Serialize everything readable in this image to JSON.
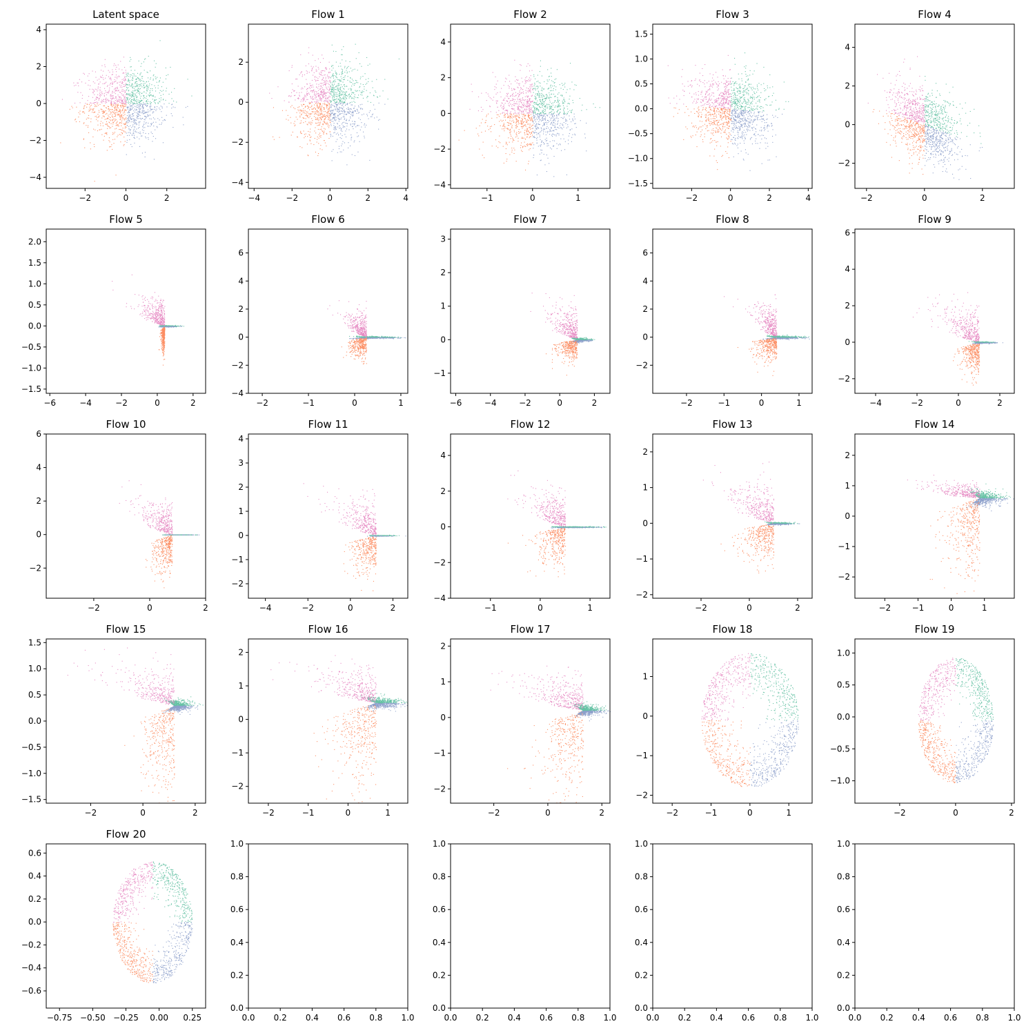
{
  "colors": {
    "series_colors": [
      "#66c2a5",
      "#fc8d62",
      "#8da0cb",
      "#e78ac3"
    ],
    "axes": "#000000",
    "background": "#ffffff"
  },
  "chart_data": [
    {
      "type": "scatter",
      "title": "Latent space",
      "xlim": [
        -3.9,
        3.9
      ],
      "ylim": [
        -4.6,
        4.3
      ],
      "xticks": [
        -2,
        0,
        2
      ],
      "yticks": [
        -4,
        -2,
        0,
        2,
        4
      ],
      "shape": {
        "kind": "gauss",
        "sx": 1.0,
        "sy": 1.0
      },
      "grid": false
    },
    {
      "type": "scatter",
      "title": "Flow 1",
      "xlim": [
        -4.3,
        4.1
      ],
      "ylim": [
        -4.3,
        3.9
      ],
      "xticks": [
        -4,
        -2,
        0,
        2,
        4
      ],
      "yticks": [
        -4,
        -2,
        0,
        2
      ],
      "shape": {
        "kind": "gauss",
        "sx": 1.0,
        "sy": 1.0
      },
      "grid": false
    },
    {
      "type": "scatter",
      "title": "Flow 2",
      "xlim": [
        -1.8,
        1.7
      ],
      "ylim": [
        -4.2,
        5.0
      ],
      "xticks": [
        -1,
        0,
        1
      ],
      "yticks": [
        -4,
        -2,
        0,
        2,
        4
      ],
      "shape": {
        "kind": "gauss",
        "sx": 0.45,
        "sy": 1.0
      },
      "grid": false
    },
    {
      "type": "scatter",
      "title": "Flow 3",
      "xlim": [
        -4.0,
        4.2
      ],
      "ylim": [
        -1.6,
        1.7
      ],
      "xticks": [
        -2,
        0,
        2,
        4
      ],
      "yticks": [
        -1.5,
        -1.0,
        -0.5,
        0.0,
        0.5,
        1.0,
        1.5
      ],
      "shape": {
        "kind": "shear",
        "sx": 1.0,
        "sy": 0.35,
        "k": -0.12
      },
      "grid": false
    },
    {
      "type": "scatter",
      "title": "Flow 4",
      "xlim": [
        -2.4,
        3.1
      ],
      "ylim": [
        -3.3,
        5.2
      ],
      "xticks": [
        -2,
        0,
        2
      ],
      "yticks": [
        -2,
        0,
        2,
        4
      ],
      "shape": {
        "kind": "shear",
        "sx": 0.6,
        "sy": 0.9,
        "k": -1.1
      },
      "grid": false
    },
    {
      "type": "scatter",
      "title": "Flow 5",
      "xlim": [
        -6.2,
        2.7
      ],
      "ylim": [
        -1.6,
        2.3
      ],
      "xticks": [
        -6,
        -4,
        -2,
        0,
        2
      ],
      "yticks": [
        -1.5,
        -1.0,
        -0.5,
        0.0,
        0.5,
        1.0,
        1.5,
        2.0
      ],
      "shape": {
        "kind": "wedge",
        "cx": 0.4,
        "cy": 0.0,
        "ax": -1.5,
        "ay": 0.55,
        "bx": 0.0,
        "by": -0.45
      },
      "grid": false
    },
    {
      "type": "scatter",
      "title": "Flow 6",
      "xlim": [
        -2.3,
        1.15
      ],
      "ylim": [
        -4.0,
        7.7
      ],
      "xticks": [
        -2,
        -1,
        0,
        1
      ],
      "yticks": [
        -4,
        -2,
        0,
        2,
        4,
        6
      ],
      "shape": {
        "kind": "wedge",
        "cx": 0.25,
        "cy": 0.0,
        "ax": -0.45,
        "ay": 1.5,
        "bx": -0.2,
        "by": -1.0
      },
      "grid": false
    },
    {
      "type": "scatter",
      "title": "Flow 7",
      "xlim": [
        -6.3,
        2.9
      ],
      "ylim": [
        -1.6,
        3.3
      ],
      "xticks": [
        -6,
        -4,
        -2,
        0,
        2
      ],
      "yticks": [
        -1,
        0,
        1,
        2,
        3
      ],
      "shape": {
        "kind": "wedge",
        "cx": 1.0,
        "cy": 0.0,
        "ax": -1.6,
        "ay": 0.8,
        "bx": -1.3,
        "by": -0.45
      },
      "grid": false
    },
    {
      "type": "scatter",
      "title": "Flow 8",
      "xlim": [
        -2.9,
        1.35
      ],
      "ylim": [
        -4.0,
        7.7
      ],
      "xticks": [
        -2,
        -1,
        0,
        1
      ],
      "yticks": [
        -2,
        0,
        2,
        4,
        6
      ],
      "shape": {
        "kind": "wedge",
        "cx": 0.4,
        "cy": 0.0,
        "ax": -0.6,
        "ay": 2.0,
        "bx": -0.5,
        "by": -1.3
      },
      "grid": false
    },
    {
      "type": "scatter",
      "title": "Flow 9",
      "xlim": [
        -5.0,
        2.7
      ],
      "ylim": [
        -2.8,
        6.2
      ],
      "xticks": [
        -4,
        -2,
        0,
        2
      ],
      "yticks": [
        -2,
        0,
        2,
        4,
        6
      ],
      "shape": {
        "kind": "wedge",
        "cx": 1.0,
        "cy": 0.0,
        "ax": -2.0,
        "ay": 1.6,
        "bx": -0.9,
        "by": -1.3
      },
      "grid": false
    },
    {
      "type": "scatter",
      "title": "Flow 10",
      "xlim": [
        -3.7,
        2.0
      ],
      "ylim": [
        -3.8,
        6.0
      ],
      "xticks": [
        -2,
        0,
        2
      ],
      "yticks": [
        -2,
        0,
        2,
        4,
        6
      ],
      "shape": {
        "kind": "wedge",
        "cx": 0.8,
        "cy": 0.0,
        "ax": -1.3,
        "ay": 1.7,
        "bx": -0.7,
        "by": -1.7
      },
      "grid": false
    },
    {
      "type": "scatter",
      "title": "Flow 11",
      "xlim": [
        -4.8,
        2.7
      ],
      "ylim": [
        -2.6,
        4.2
      ],
      "xticks": [
        -4,
        -2,
        0,
        2
      ],
      "yticks": [
        -2,
        -1,
        0,
        1,
        2,
        3,
        4
      ],
      "shape": {
        "kind": "wedge",
        "cx": 1.2,
        "cy": 0.0,
        "ax": -2.0,
        "ay": 1.3,
        "bx": -1.3,
        "by": -1.2
      },
      "grid": false
    },
    {
      "type": "scatter",
      "title": "Flow 12",
      "xlim": [
        -1.8,
        1.4
      ],
      "ylim": [
        -4.0,
        5.2
      ],
      "xticks": [
        -1,
        0,
        1
      ],
      "yticks": [
        -4,
        -2,
        0,
        2,
        4
      ],
      "shape": {
        "kind": "wedge",
        "cx": 0.5,
        "cy": 0.0,
        "ax": -0.8,
        "ay": 1.8,
        "bx": -0.5,
        "by": -1.6
      },
      "grid": false
    },
    {
      "type": "scatter",
      "title": "Flow 13",
      "xlim": [
        -4.0,
        2.6
      ],
      "ylim": [
        -2.1,
        2.5
      ],
      "xticks": [
        -2,
        0,
        2
      ],
      "yticks": [
        -2,
        -1,
        0,
        1,
        2
      ],
      "shape": {
        "kind": "wedge",
        "cx": 1.0,
        "cy": 0.0,
        "ax": -2.0,
        "ay": 1.0,
        "bx": -1.6,
        "by": -0.8
      },
      "grid": false
    },
    {
      "type": "scatter",
      "title": "Flow 14",
      "xlim": [
        -2.9,
        1.9
      ],
      "ylim": [
        -2.7,
        2.7
      ],
      "xticks": [
        -2,
        -1,
        0,
        1
      ],
      "yticks": [
        -2,
        -1,
        0,
        1,
        2
      ],
      "shape": {
        "kind": "wedge",
        "cx": 0.85,
        "cy": 0.6,
        "ax": -1.6,
        "ay": 0.4,
        "bx": -1.1,
        "by": -2.0
      },
      "grid": false
    },
    {
      "type": "scatter",
      "title": "Flow 15",
      "xlim": [
        -3.7,
        2.4
      ],
      "ylim": [
        -1.57,
        1.57
      ],
      "xticks": [
        -2,
        0,
        2
      ],
      "yticks": [
        -1.5,
        -1.0,
        -0.5,
        0.0,
        0.5,
        1.0,
        1.5
      ],
      "shape": {
        "kind": "wedge",
        "cx": 1.2,
        "cy": 0.3,
        "ax": -2.2,
        "ay": 0.6,
        "bx": -1.4,
        "by": -1.3
      },
      "grid": false
    },
    {
      "type": "scatter",
      "title": "Flow 16",
      "xlim": [
        -2.5,
        1.5
      ],
      "ylim": [
        -2.5,
        2.4
      ],
      "xticks": [
        -2,
        -1,
        0,
        1
      ],
      "yticks": [
        -2,
        -1,
        0,
        1,
        2
      ],
      "shape": {
        "kind": "wedge",
        "cx": 0.7,
        "cy": 0.5,
        "ax": -1.6,
        "ay": 0.9,
        "bx": -1.2,
        "by": -2.0
      },
      "grid": false
    },
    {
      "type": "scatter",
      "title": "Flow 17",
      "xlim": [
        -3.6,
        2.3
      ],
      "ylim": [
        -2.4,
        2.2
      ],
      "xticks": [
        -2,
        0,
        2
      ],
      "yticks": [
        -2,
        -1,
        0,
        1,
        2
      ],
      "shape": {
        "kind": "wedge",
        "cx": 1.3,
        "cy": 0.2,
        "ax": -2.3,
        "ay": 0.8,
        "bx": -1.8,
        "by": -1.8
      },
      "grid": false
    },
    {
      "type": "scatter",
      "title": "Flow 18",
      "xlim": [
        -2.5,
        1.6
      ],
      "ylim": [
        -2.2,
        1.95
      ],
      "xticks": [
        -2,
        -1,
        0,
        1
      ],
      "yticks": [
        -2,
        -1,
        0,
        1
      ],
      "shape": {
        "kind": "ring",
        "cx": 0.0,
        "cy": -0.1,
        "rx": 1.25,
        "ry": 1.7,
        "t": 0.25
      },
      "grid": false
    },
    {
      "type": "scatter",
      "title": "Flow 19",
      "xlim": [
        -3.6,
        2.1
      ],
      "ylim": [
        -1.35,
        1.22
      ],
      "xticks": [
        -2,
        0,
        2
      ],
      "yticks": [
        -1.0,
        -0.5,
        0.0,
        0.5,
        1.0
      ],
      "shape": {
        "kind": "ring",
        "cx": 0.0,
        "cy": -0.05,
        "rx": 1.35,
        "ry": 0.98,
        "t": 0.25
      },
      "grid": false
    },
    {
      "type": "scatter",
      "title": "Flow 20",
      "xlim": [
        -0.85,
        0.35
      ],
      "ylim": [
        -0.75,
        0.68
      ],
      "xticks": [
        -0.75,
        -0.5,
        -0.25,
        0.0,
        0.25
      ],
      "yticks": [
        -0.6,
        -0.4,
        -0.2,
        0.0,
        0.2,
        0.4,
        0.6
      ],
      "tick_decimals": 2,
      "shape": {
        "kind": "ring",
        "cx": -0.05,
        "cy": 0.0,
        "rx": 0.3,
        "ry": 0.53,
        "t": 0.22
      },
      "grid": false
    },
    {
      "type": "scatter",
      "title": "",
      "xlim": [
        0,
        1
      ],
      "ylim": [
        0,
        1
      ],
      "xticks": [
        0.0,
        0.2,
        0.4,
        0.6,
        0.8,
        1.0
      ],
      "yticks": [
        0.0,
        0.2,
        0.4,
        0.6,
        0.8,
        1.0
      ],
      "empty": true,
      "grid": false
    },
    {
      "type": "scatter",
      "title": "",
      "xlim": [
        0,
        1
      ],
      "ylim": [
        0,
        1
      ],
      "xticks": [
        0.0,
        0.2,
        0.4,
        0.6,
        0.8,
        1.0
      ],
      "yticks": [
        0.0,
        0.2,
        0.4,
        0.6,
        0.8,
        1.0
      ],
      "empty": true,
      "grid": false
    },
    {
      "type": "scatter",
      "title": "",
      "xlim": [
        0,
        1
      ],
      "ylim": [
        0,
        1
      ],
      "xticks": [
        0.0,
        0.2,
        0.4,
        0.6,
        0.8,
        1.0
      ],
      "yticks": [
        0.0,
        0.2,
        0.4,
        0.6,
        0.8,
        1.0
      ],
      "empty": true,
      "grid": false
    },
    {
      "type": "scatter",
      "title": "",
      "xlim": [
        0,
        1
      ],
      "ylim": [
        0,
        1
      ],
      "xticks": [
        0.0,
        0.2,
        0.4,
        0.6,
        0.8,
        1.0
      ],
      "yticks": [
        0.0,
        0.2,
        0.4,
        0.6,
        0.8,
        1.0
      ],
      "empty": true,
      "grid": false
    }
  ]
}
